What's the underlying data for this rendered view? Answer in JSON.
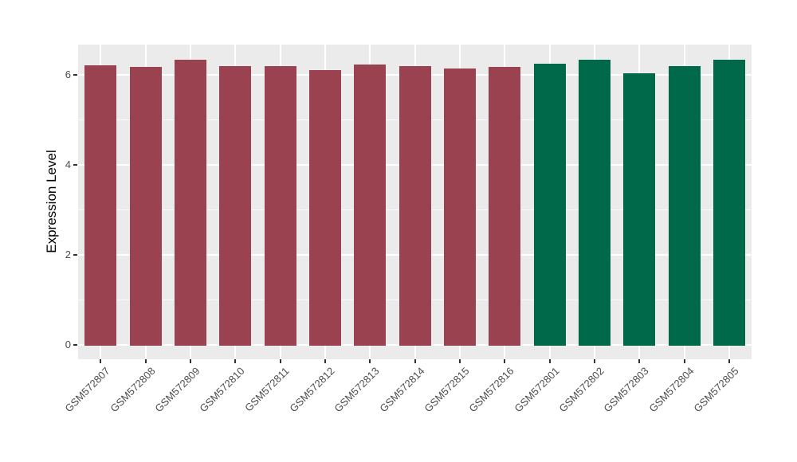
{
  "chart_data": {
    "type": "bar",
    "title": "",
    "xlabel": "",
    "ylabel": "Expression Level",
    "ylim": [
      0,
      6.67
    ],
    "yticks": [
      0,
      2,
      4,
      6
    ],
    "yticks_minor": [
      1,
      3,
      5
    ],
    "grid": true,
    "legend": "none",
    "categories": [
      "GSM572807",
      "GSM572808",
      "GSM572809",
      "GSM572810",
      "GSM572811",
      "GSM572812",
      "GSM572813",
      "GSM572814",
      "GSM572815",
      "GSM572816",
      "GSM572801",
      "GSM572802",
      "GSM572803",
      "GSM572804",
      "GSM572805"
    ],
    "values": [
      6.21,
      6.18,
      6.33,
      6.2,
      6.19,
      6.1,
      6.23,
      6.2,
      6.14,
      6.17,
      6.24,
      6.33,
      6.04,
      6.2,
      6.34
    ],
    "bar_groups": [
      "group1",
      "group1",
      "group1",
      "group1",
      "group1",
      "group1",
      "group1",
      "group1",
      "group1",
      "group1",
      "group2",
      "group2",
      "group2",
      "group2",
      "group2"
    ],
    "colors": {
      "group1": "#9B4250",
      "group2": "#00694A",
      "panel_background": "#EBEBEB",
      "gridline": "#FFFFFF",
      "axis_text": "#4D4D4D",
      "tick_mark": "#333333"
    }
  }
}
